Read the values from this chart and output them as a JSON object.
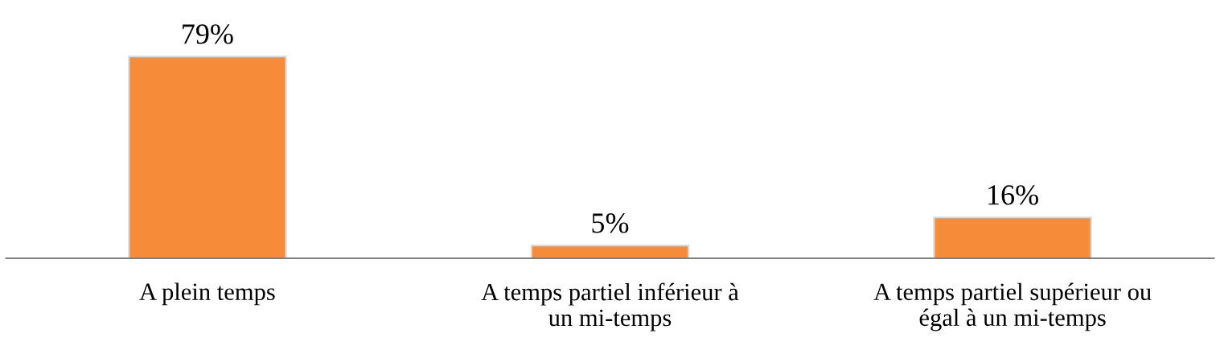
{
  "chart_data": {
    "type": "bar",
    "categories": [
      "A plein temps",
      "A temps partiel inférieur à un mi-temps",
      "A temps partiel supérieur ou égal à un mi-temps"
    ],
    "values": [
      79,
      5,
      16
    ],
    "value_labels": [
      "79%",
      "5%",
      "16%"
    ],
    "color": "#f68b3a",
    "tick_labels": "x",
    "grid": false,
    "legend": false
  }
}
